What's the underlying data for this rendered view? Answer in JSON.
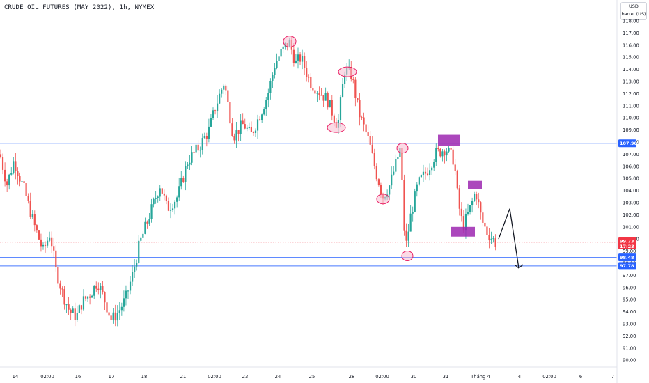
{
  "title": "CRUDE OIL FUTURES (MAY 2022), 1h, NYMEX",
  "currency_button": {
    "line1": "USD",
    "line2": "barrel (US)"
  },
  "colors": {
    "up": "#26a69a",
    "down": "#ef5350",
    "level_line": "#2962ff",
    "marker_fill": "#f8bbd0",
    "marker_stroke": "#e91e63",
    "box": "#9c27b0",
    "current_price": "#f23645",
    "axis_tag": "#2962ff"
  },
  "price_axis_labels": [
    "118.00",
    "117.00",
    "116.00",
    "115.00",
    "114.00",
    "113.00",
    "112.00",
    "111.00",
    "110.00",
    "109.00",
    "108.00",
    "107.00",
    "106.00",
    "105.00",
    "104.00",
    "103.00",
    "102.00",
    "101.00",
    "100.00",
    "99.00",
    "98.00",
    "97.00",
    "96.00",
    "95.00",
    "94.00",
    "93.00",
    "92.00",
    "91.00",
    "90.00"
  ],
  "time_axis_labels": [
    "14",
    "02:00",
    "16",
    "17",
    "18",
    "21",
    "02:00",
    "23",
    "24",
    "25",
    "28",
    "02:00",
    "30",
    "31",
    "Tháng 4",
    "4",
    "02:00",
    "6",
    "7"
  ],
  "price_tags": {
    "upper_level": "107.90",
    "current_price": "99.73",
    "countdown": "17:23",
    "level_2": "98.48",
    "level_3": "97.78"
  },
  "chart_data": {
    "type": "candlestick",
    "title": "CRUDE OIL FUTURES (MAY 2022), 1h, NYMEX",
    "ylim": [
      89.5,
      118.3
    ],
    "y_unit": "USD / barrel (US)",
    "x_ticks": [
      "14",
      "02:00",
      "16",
      "17",
      "18",
      "21",
      "02:00",
      "23",
      "24",
      "25",
      "28",
      "02:00",
      "30",
      "31",
      "Tháng 4",
      "4",
      "02:00",
      "6",
      "7"
    ],
    "horizontal_levels": [
      107.9,
      98.48,
      97.78
    ],
    "current_price": 99.73,
    "price_path_approx": [
      [
        0,
        107
      ],
      [
        10,
        104.5
      ],
      [
        20,
        106.5
      ],
      [
        35,
        104
      ],
      [
        50,
        101
      ],
      [
        62,
        99
      ],
      [
        72,
        100.5
      ],
      [
        80,
        97.5
      ],
      [
        90,
        95.5
      ],
      [
        100,
        94
      ],
      [
        110,
        93.6
      ],
      [
        118,
        94.8
      ],
      [
        130,
        95.5
      ],
      [
        140,
        96.5
      ],
      [
        150,
        95
      ],
      [
        160,
        93.3
      ],
      [
        170,
        94
      ],
      [
        180,
        95
      ],
      [
        190,
        97
      ],
      [
        200,
        99.5
      ],
      [
        215,
        102
      ],
      [
        230,
        104.5
      ],
      [
        240,
        102.5
      ],
      [
        255,
        103.5
      ],
      [
        270,
        106.5
      ],
      [
        285,
        107.5
      ],
      [
        300,
        109
      ],
      [
        310,
        111
      ],
      [
        322,
        113
      ],
      [
        335,
        108.5
      ],
      [
        350,
        109.5
      ],
      [
        360,
        108.5
      ],
      [
        375,
        110.5
      ],
      [
        385,
        112
      ],
      [
        395,
        114.5
      ],
      [
        405,
        115.5
      ],
      [
        415,
        116.3
      ],
      [
        425,
        114.5
      ],
      [
        432,
        115
      ],
      [
        445,
        113
      ],
      [
        458,
        112.2
      ],
      [
        470,
        111.5
      ],
      [
        485,
        109.3
      ],
      [
        495,
        114
      ],
      [
        505,
        113.5
      ],
      [
        515,
        110.5
      ],
      [
        530,
        108
      ],
      [
        540,
        105.5
      ],
      [
        550,
        103.5
      ],
      [
        560,
        104.5
      ],
      [
        575,
        107.5
      ],
      [
        582,
        99
      ],
      [
        590,
        102
      ],
      [
        600,
        104.5
      ],
      [
        612,
        105.5
      ],
      [
        625,
        107
      ],
      [
        640,
        107.5
      ],
      [
        652,
        106.5
      ],
      [
        658,
        103
      ],
      [
        665,
        101
      ],
      [
        675,
        102.5
      ],
      [
        683,
        104
      ],
      [
        692,
        101.5
      ],
      [
        700,
        100.5
      ],
      [
        712,
        99.7
      ]
    ],
    "projection": [
      [
        716,
        100
      ],
      [
        732,
        102.5
      ],
      [
        745,
        97.6
      ]
    ],
    "annotations": {
      "circles": [
        [
          416,
          116.3
        ],
        [
          499,
          113.8
        ],
        [
          483,
          109.2
        ],
        [
          550,
          103.3
        ],
        [
          578,
          107.5
        ],
        [
          585,
          98.6
        ]
      ],
      "boxes": [
        [
          [
            629,
            107.7
          ],
          [
            661,
            108.6
          ]
        ],
        [
          [
            672,
            104.1
          ],
          [
            692,
            104.8
          ]
        ],
        [
          [
            648,
            100.2
          ],
          [
            682,
            101.0
          ]
        ]
      ]
    }
  }
}
